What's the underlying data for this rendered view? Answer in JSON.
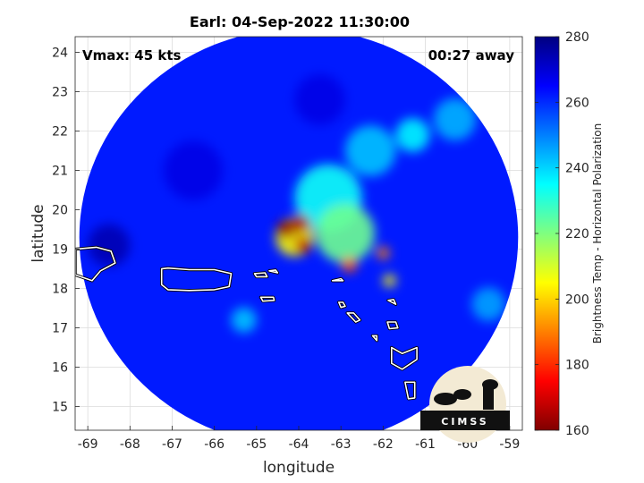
{
  "chart_data": {
    "type": "heatmap",
    "title": "Earl: 04-Sep-2022 11:30:00",
    "xlabel": "longitude",
    "ylabel": "latitude",
    "xlim": [
      -69.3,
      -58.7
    ],
    "ylim": [
      14.4,
      24.4
    ],
    "xticks": [
      -69,
      -68,
      -67,
      -66,
      -65,
      -64,
      -63,
      -62,
      -61,
      -60,
      -59
    ],
    "yticks": [
      15,
      16,
      17,
      18,
      19,
      20,
      21,
      22,
      23,
      24
    ],
    "grid": true,
    "annotations": {
      "vmax": "Vmax: 45 kts",
      "time_offset": "00:27 away"
    },
    "colorbar": {
      "label": "Brightness Temp - Horizontal Polarization",
      "range": [
        160,
        280
      ],
      "ticks": [
        160,
        180,
        200,
        220,
        240,
        260,
        280
      ],
      "colormap": "jet"
    },
    "swath": {
      "center_lon": -64.0,
      "center_lat": 19.3,
      "radius_deg": 5.2,
      "background_value": 262
    },
    "features": [
      {
        "lon": -64.3,
        "lat": 19.5,
        "value": 163,
        "spread": 0.22
      },
      {
        "lon": -63.95,
        "lat": 19.65,
        "value": 165,
        "spread": 0.22
      },
      {
        "lon": -63.9,
        "lat": 19.1,
        "value": 167,
        "spread": 0.2
      },
      {
        "lon": -64.1,
        "lat": 19.3,
        "value": 205,
        "spread": 0.45
      },
      {
        "lon": -62.8,
        "lat": 18.6,
        "value": 185,
        "spread": 0.18
      },
      {
        "lon": -62.0,
        "lat": 18.9,
        "value": 190,
        "spread": 0.15
      },
      {
        "lon": -61.85,
        "lat": 18.2,
        "value": 205,
        "spread": 0.15
      },
      {
        "lon": -62.9,
        "lat": 19.4,
        "value": 222,
        "spread": 0.7
      },
      {
        "lon": -63.3,
        "lat": 20.3,
        "value": 234,
        "spread": 0.8
      },
      {
        "lon": -62.3,
        "lat": 21.5,
        "value": 242,
        "spread": 0.6
      },
      {
        "lon": -61.3,
        "lat": 21.9,
        "value": 236,
        "spread": 0.4
      },
      {
        "lon": -60.3,
        "lat": 22.3,
        "value": 244,
        "spread": 0.5
      },
      {
        "lon": -65.3,
        "lat": 17.2,
        "value": 242,
        "spread": 0.3
      },
      {
        "lon": -59.5,
        "lat": 17.6,
        "value": 246,
        "spread": 0.4
      },
      {
        "lon": -68.5,
        "lat": 19.1,
        "value": 274,
        "spread": 0.5
      },
      {
        "lon": -66.5,
        "lat": 21.0,
        "value": 268,
        "spread": 0.7
      },
      {
        "lon": -63.5,
        "lat": 22.8,
        "value": 268,
        "spread": 0.6
      }
    ],
    "coastlines": [
      {
        "name": "Puerto Rico",
        "lon": [
          -67.25,
          -67.1,
          -66.6,
          -66.0,
          -65.6,
          -65.65,
          -66.0,
          -66.6,
          -67.1,
          -67.25
        ],
        "lat": [
          18.5,
          18.52,
          18.48,
          18.48,
          18.38,
          18.05,
          17.97,
          17.95,
          17.97,
          18.1
        ]
      },
      {
        "name": "Hispaniola",
        "lon": [
          -69.3,
          -68.8,
          -68.45,
          -68.35,
          -68.7,
          -68.9,
          -69.3
        ],
        "lat": [
          19.0,
          19.05,
          18.95,
          18.65,
          18.45,
          18.2,
          18.35
        ]
      },
      {
        "name": "St Thomas",
        "lon": [
          -65.05,
          -64.8,
          -64.75,
          -65.0,
          -65.05
        ],
        "lat": [
          18.38,
          18.4,
          18.3,
          18.3,
          18.38
        ]
      },
      {
        "name": "Tortola",
        "lon": [
          -64.7,
          -64.55,
          -64.5,
          -64.7
        ],
        "lat": [
          18.45,
          18.47,
          18.4,
          18.45
        ]
      },
      {
        "name": "St Croix",
        "lon": [
          -64.9,
          -64.6,
          -64.58,
          -64.85,
          -64.9
        ],
        "lat": [
          17.78,
          17.78,
          17.7,
          17.68,
          17.78
        ]
      },
      {
        "name": "Anguilla",
        "lon": [
          -63.2,
          -63.0,
          -62.95,
          -63.2
        ],
        "lat": [
          18.2,
          18.25,
          18.2,
          18.2
        ]
      },
      {
        "name": "Saba-Eustatius",
        "lon": [
          -63.05,
          -62.95,
          -62.9,
          -63.0,
          -63.05
        ],
        "lat": [
          17.65,
          17.65,
          17.55,
          17.52,
          17.65
        ]
      },
      {
        "name": "St Kitts",
        "lon": [
          -62.85,
          -62.7,
          -62.55,
          -62.65,
          -62.85
        ],
        "lat": [
          17.38,
          17.38,
          17.2,
          17.15,
          17.38
        ]
      },
      {
        "name": "Antigua",
        "lon": [
          -61.9,
          -61.7,
          -61.65,
          -61.85,
          -61.9
        ],
        "lat": [
          17.15,
          17.15,
          17.0,
          16.98,
          17.15
        ]
      },
      {
        "name": "Montserrat",
        "lon": [
          -62.25,
          -62.15,
          -62.15,
          -62.25
        ],
        "lat": [
          16.8,
          16.8,
          16.68,
          16.8
        ]
      },
      {
        "name": "Guadeloupe",
        "lon": [
          -61.8,
          -61.55,
          -61.2,
          -61.2,
          -61.55,
          -61.8
        ],
        "lat": [
          16.5,
          16.35,
          16.5,
          16.2,
          15.95,
          16.1
        ]
      },
      {
        "name": "Dominica",
        "lon": [
          -61.48,
          -61.25,
          -61.25,
          -61.4,
          -61.48
        ],
        "lat": [
          15.62,
          15.62,
          15.22,
          15.2,
          15.62
        ]
      },
      {
        "name": "Barbuda",
        "lon": [
          -61.88,
          -61.75,
          -61.7,
          -61.88
        ],
        "lat": [
          17.7,
          17.72,
          17.6,
          17.7
        ]
      }
    ]
  },
  "logo": {
    "text": "CIMSS"
  }
}
